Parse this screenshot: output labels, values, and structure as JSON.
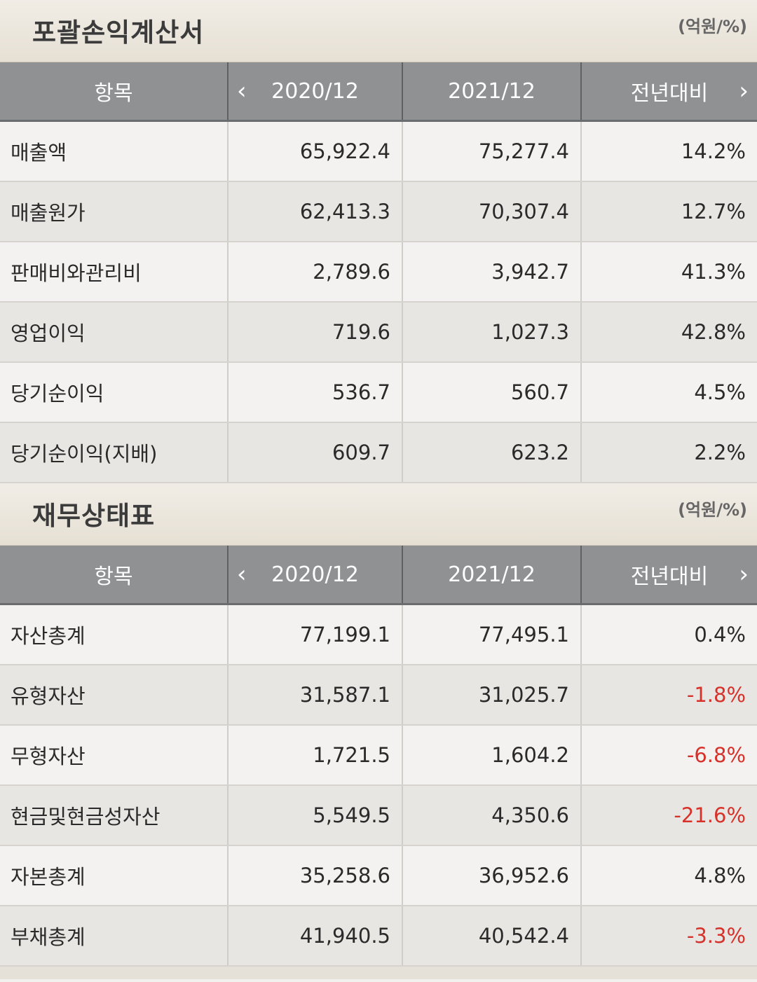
{
  "sections": [
    {
      "title": "포괄손익계산서",
      "unit": "(억원/%)",
      "headers": {
        "item": "항목",
        "col1": "2020/12",
        "col2": "2021/12",
        "col3": "전년대비"
      },
      "rows": [
        {
          "name": "매출액",
          "v2020": "65,922.4",
          "v2021": "75,277.4",
          "yoy": "14.2%",
          "neg": false
        },
        {
          "name": "매출원가",
          "v2020": "62,413.3",
          "v2021": "70,307.4",
          "yoy": "12.7%",
          "neg": false
        },
        {
          "name": "판매비와관리비",
          "v2020": "2,789.6",
          "v2021": "3,942.7",
          "yoy": "41.3%",
          "neg": false
        },
        {
          "name": "영업이익",
          "v2020": "719.6",
          "v2021": "1,027.3",
          "yoy": "42.8%",
          "neg": false
        },
        {
          "name": "당기순이익",
          "v2020": "536.7",
          "v2021": "560.7",
          "yoy": "4.5%",
          "neg": false
        },
        {
          "name": "당기순이익(지배)",
          "v2020": "609.7",
          "v2021": "623.2",
          "yoy": "2.2%",
          "neg": false
        }
      ]
    },
    {
      "title": "재무상태표",
      "unit": "(억원/%)",
      "headers": {
        "item": "항목",
        "col1": "2020/12",
        "col2": "2021/12",
        "col3": "전년대비"
      },
      "rows": [
        {
          "name": "자산총계",
          "v2020": "77,199.1",
          "v2021": "77,495.1",
          "yoy": "0.4%",
          "neg": false
        },
        {
          "name": "유형자산",
          "v2020": "31,587.1",
          "v2021": "31,025.7",
          "yoy": "-1.8%",
          "neg": true
        },
        {
          "name": "무형자산",
          "v2020": "1,721.5",
          "v2021": "1,604.2",
          "yoy": "-6.8%",
          "neg": true
        },
        {
          "name": "현금및현금성자산",
          "v2020": "5,549.5",
          "v2021": "4,350.6",
          "yoy": "-21.6%",
          "neg": true
        },
        {
          "name": "자본총계",
          "v2020": "35,258.6",
          "v2021": "36,952.6",
          "yoy": "4.8%",
          "neg": false
        },
        {
          "name": "부채총계",
          "v2020": "41,940.5",
          "v2021": "40,542.4",
          "yoy": "-3.3%",
          "neg": true
        }
      ]
    }
  ],
  "icons": {
    "prev": "chevron-left-icon",
    "next": "chevron-right-icon"
  },
  "colors": {
    "negative": "#d6322a",
    "header_bg": "#909193",
    "section_bg": "#ece7df"
  }
}
